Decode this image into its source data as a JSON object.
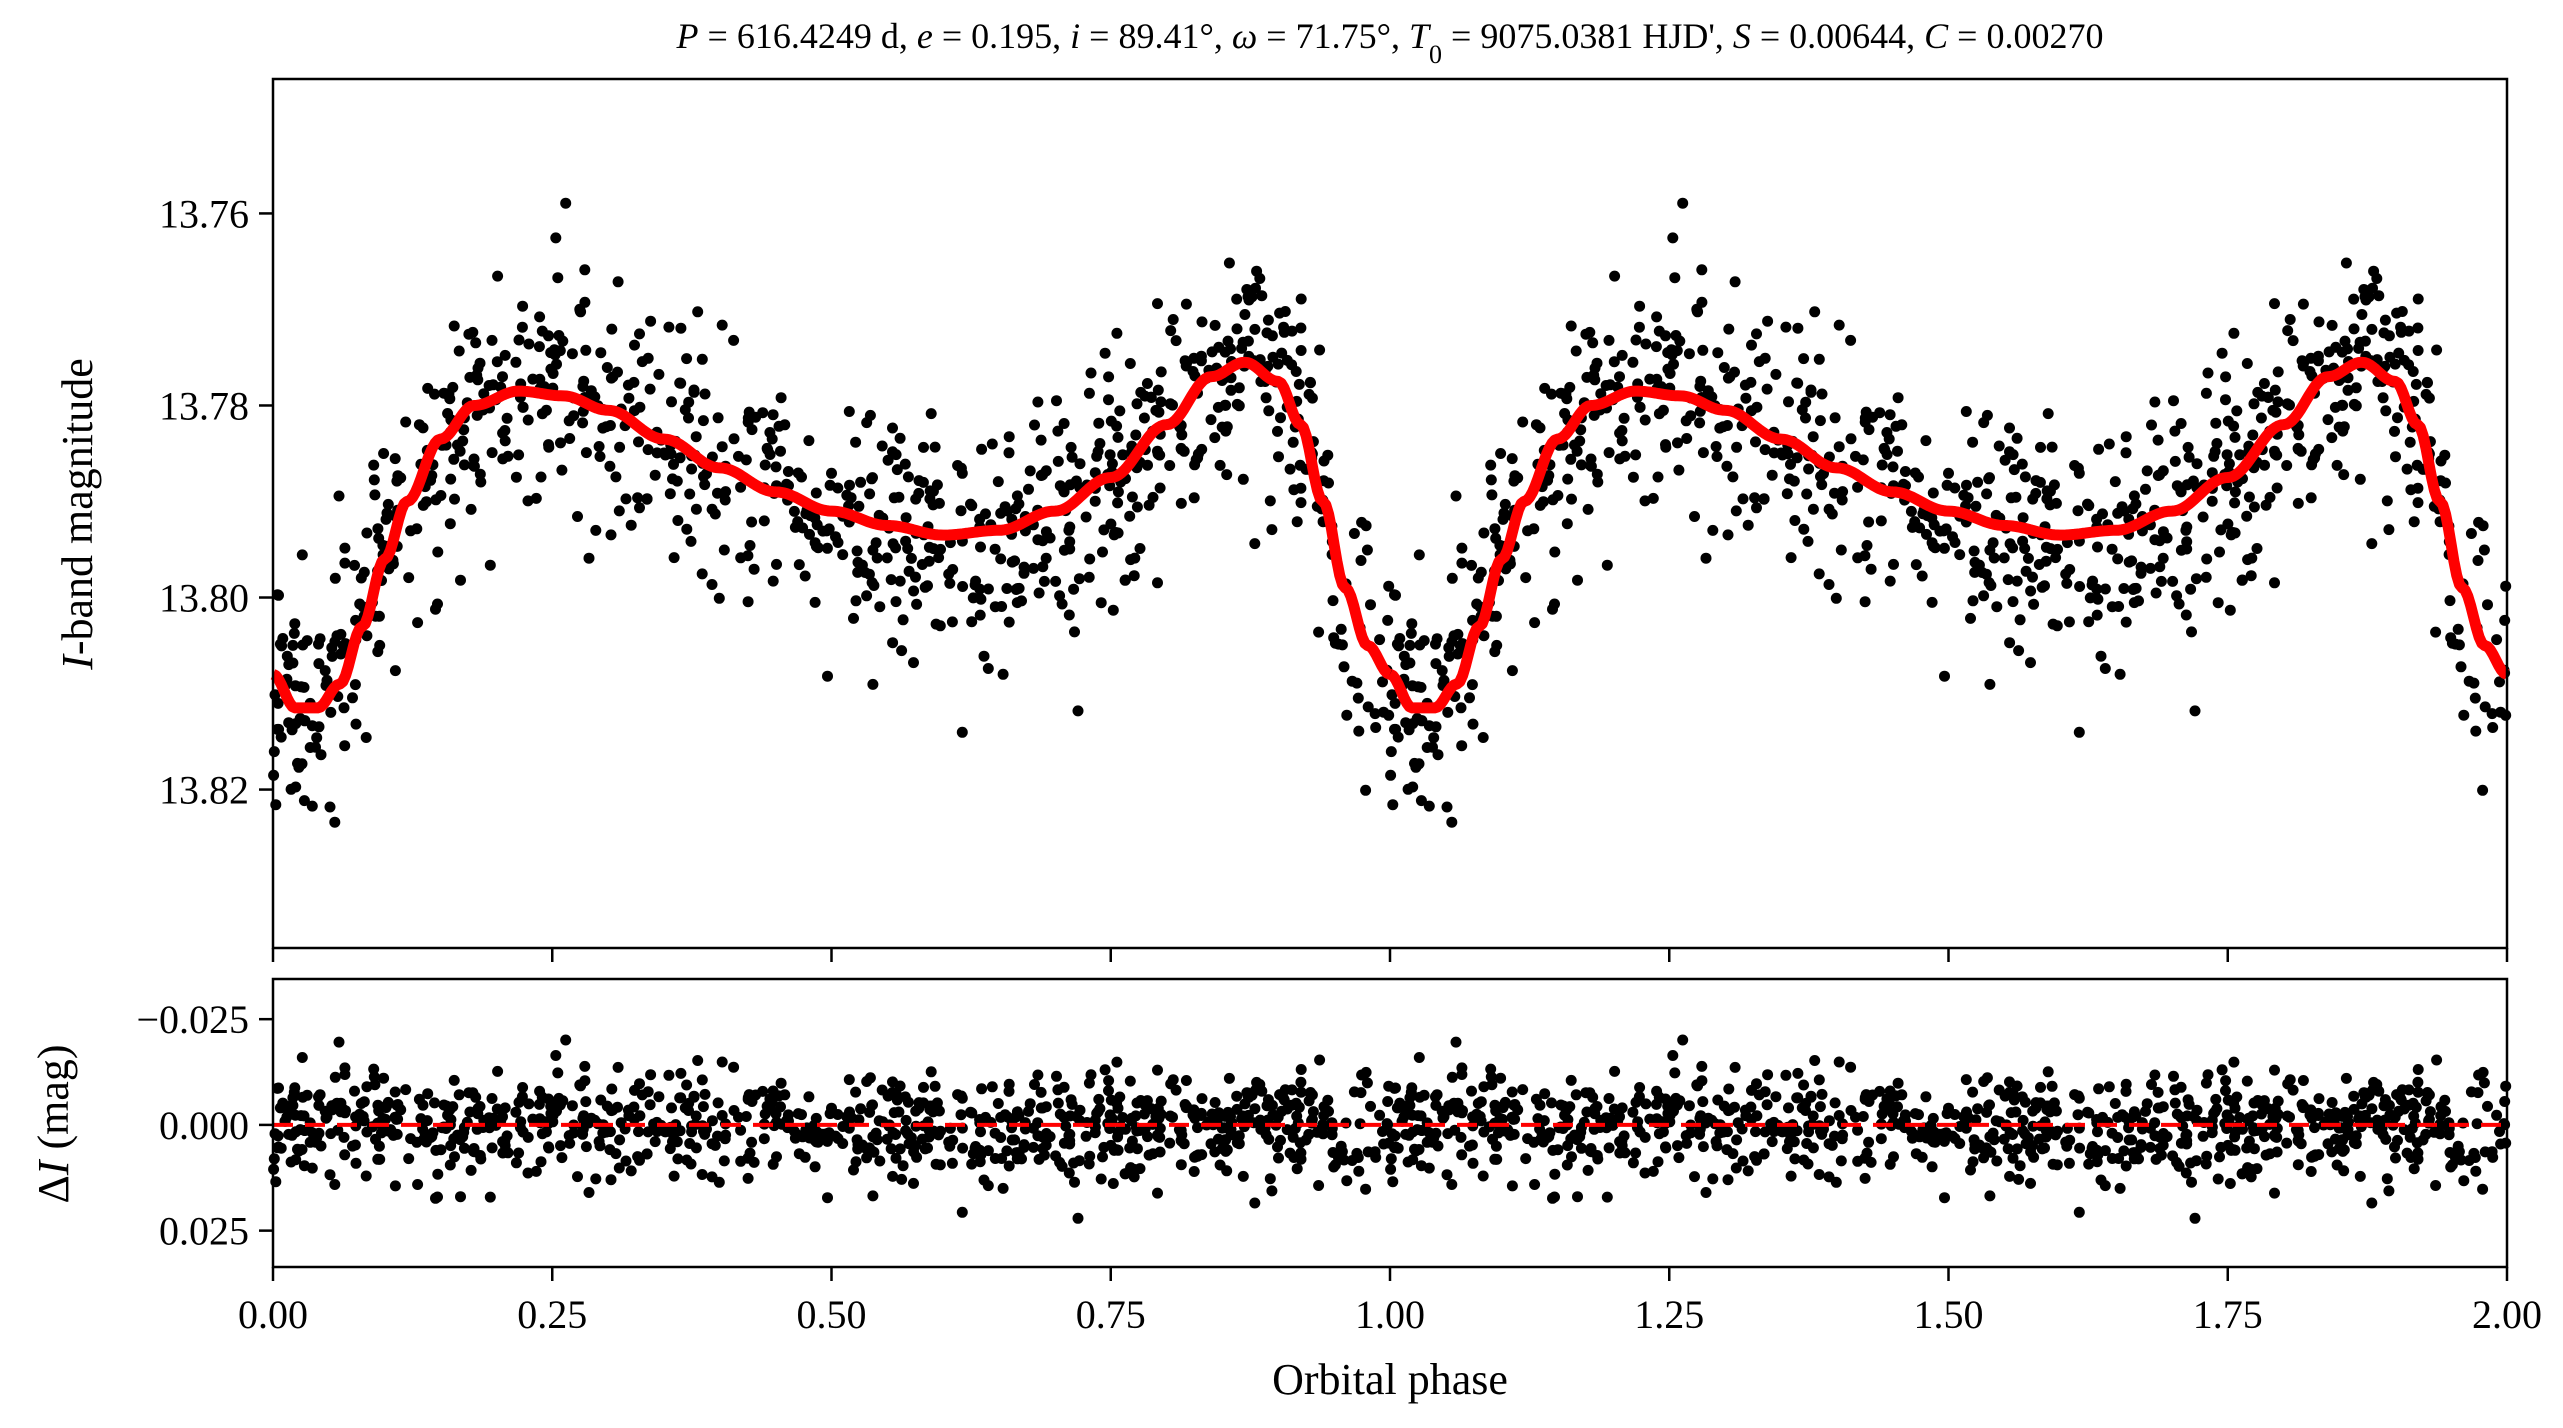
{
  "chart_data": [
    {
      "type": "scatter",
      "panel": "light-curve",
      "title_parts": [
        {
          "t": "P",
          "i": true
        },
        {
          "t": " = 616.4249 d, ",
          "i": false
        },
        {
          "t": "e",
          "i": true
        },
        {
          "t": " = 0.195, ",
          "i": false
        },
        {
          "t": "i",
          "i": true
        },
        {
          "t": " = 89.41°, ",
          "i": false
        },
        {
          "t": "ω",
          "i": true
        },
        {
          "t": " = 71.75°, ",
          "i": false
        },
        {
          "t": "T",
          "i": true
        },
        {
          "t": "0",
          "i": false,
          "sub": true
        },
        {
          "t": " = 9075.0381 HJD', ",
          "i": false
        },
        {
          "t": "S",
          "i": true
        },
        {
          "t": " = 0.00644, ",
          "i": false
        },
        {
          "t": "C",
          "i": true
        },
        {
          "t": " = 0.00270",
          "i": false
        }
      ],
      "xlabel": "Orbital phase",
      "ylabel_italic": "I",
      "ylabel_rest": "-band magnitude",
      "xlim": [
        0,
        2
      ],
      "ylim": [
        13.8365,
        13.746
      ],
      "xticks": [
        "0.00",
        "0.25",
        "0.50",
        "0.75",
        "1.00",
        "1.25",
        "1.50",
        "1.75",
        "2.00"
      ],
      "xtick_values": [
        0,
        0.25,
        0.5,
        0.75,
        1.0,
        1.25,
        1.5,
        1.75,
        2.0
      ],
      "yticks": [
        "13.76",
        "13.78",
        "13.80",
        "13.82"
      ],
      "ytick_values": [
        13.76,
        13.78,
        13.8,
        13.82
      ],
      "model": {
        "name": "orbital model",
        "color": "#ff0000",
        "phase": [
          0,
          0.02,
          0.04,
          0.06,
          0.08,
          0.1,
          0.12,
          0.15,
          0.18,
          0.22,
          0.26,
          0.3,
          0.35,
          0.4,
          0.45,
          0.5,
          0.55,
          0.6,
          0.65,
          0.7,
          0.75,
          0.8,
          0.84,
          0.87,
          0.9,
          0.92,
          0.94,
          0.96,
          0.98,
          1.0
        ],
        "mag": [
          13.808,
          13.8115,
          13.8115,
          13.809,
          13.803,
          13.796,
          13.79,
          13.7835,
          13.78,
          13.7785,
          13.779,
          13.7805,
          13.7835,
          13.7865,
          13.789,
          13.791,
          13.7925,
          13.7935,
          13.793,
          13.791,
          13.7875,
          13.782,
          13.777,
          13.7755,
          13.7775,
          13.782,
          13.79,
          13.799,
          13.805,
          13.808
        ]
      },
      "observations": {
        "color": "#000000",
        "n_per_cycle": 900,
        "scatter_sigma_mag": 0.0065,
        "repeated_over_cycles": 2
      }
    },
    {
      "type": "scatter",
      "panel": "residuals",
      "xlabel": "Orbital phase",
      "ylabel_prefix": "Δ",
      "ylabel_italic": "I",
      "ylabel_rest": " (mag)",
      "xlim": [
        0,
        2
      ],
      "ylim": [
        0.0336,
        -0.0345
      ],
      "yticks": [
        "−0.025",
        "0.000",
        "0.025"
      ],
      "ytick_values": [
        -0.025,
        0,
        0.025
      ],
      "zero_line": {
        "value": 0,
        "color": "#ff0000",
        "style": "dashed"
      }
    }
  ]
}
